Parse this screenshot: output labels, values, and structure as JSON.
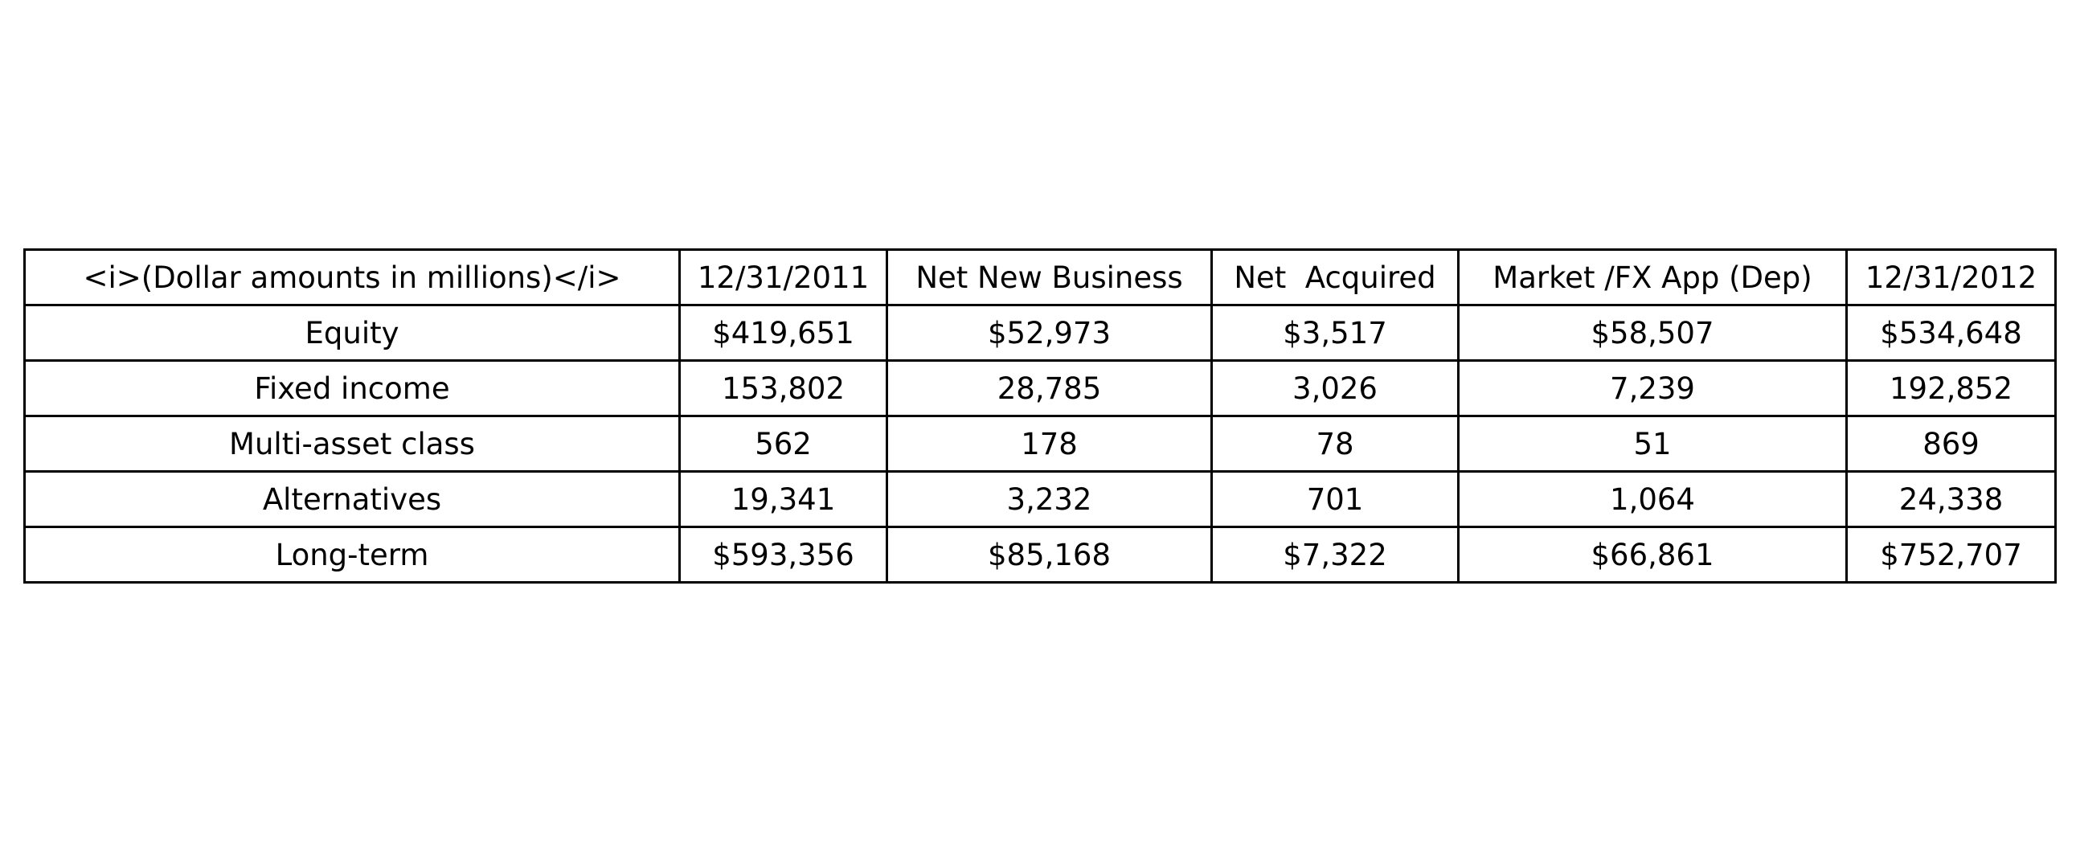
{
  "chart_data": {
    "type": "table",
    "columns": [
      "<i>(Dollar amounts in millions)</i>",
      "12/31/2011",
      "Net New Business",
      "Net  Acquired",
      "Market /FX App (Dep)",
      "12/31/2012"
    ],
    "rows": [
      [
        "Equity",
        "$419,651",
        "$52,973",
        "$3,517",
        "$58,507",
        "$534,648"
      ],
      [
        "Fixed income",
        "153,802",
        "28,785",
        "3,026",
        "7,239",
        "192,852"
      ],
      [
        "Multi-asset class",
        "562",
        "178",
        "78",
        "51",
        "869"
      ],
      [
        "Alternatives",
        "19,341",
        "3,232",
        "701",
        "1,064",
        "24,338"
      ],
      [
        "Long-term",
        "$593,356",
        "$85,168",
        "$7,322",
        "$66,861",
        "$752,707"
      ]
    ]
  }
}
